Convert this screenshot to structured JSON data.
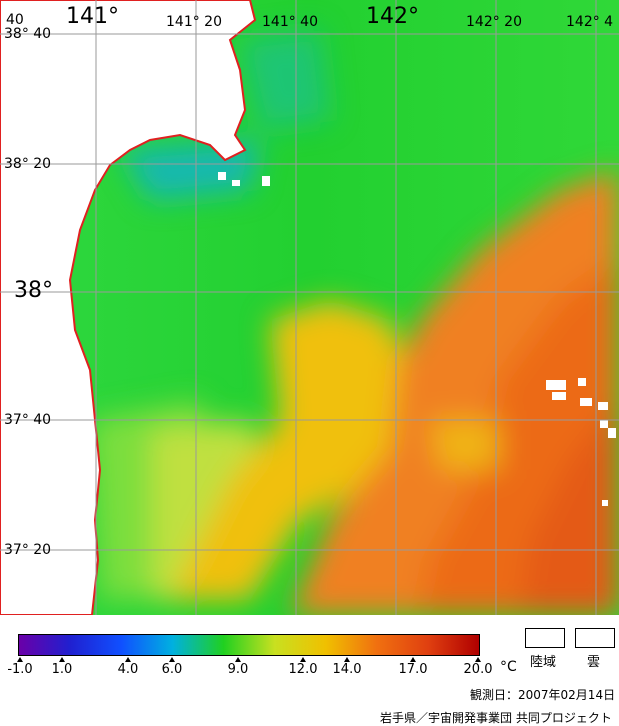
{
  "map": {
    "lon_labels": [
      "141°",
      "141° 20",
      "141° 40",
      "142°",
      "142° 20",
      "142° 4"
    ],
    "lat_labels": [
      "38° 40",
      "38° 20",
      "38°",
      "37° 40",
      "37° 20"
    ],
    "corner_label": "40"
  },
  "legend": {
    "ticks": [
      "-1.0",
      "1.0",
      "4.0",
      "6.0",
      "9.0",
      "12.0",
      "14.0",
      "17.0",
      "20.0"
    ],
    "unit": "°C",
    "colors": [
      "#6a00a8",
      "#2020d0",
      "#1050ff",
      "#00b0e0",
      "#20d020",
      "#c8e020",
      "#f0c000",
      "#f07010",
      "#e04010",
      "#b00000"
    ],
    "land_label": "陸域",
    "cloud_label": "雲"
  },
  "footer": {
    "date": "観測日：2007年02月14日",
    "credit": "岩手県／宇宙開発事業団 共同プロジェクト"
  }
}
